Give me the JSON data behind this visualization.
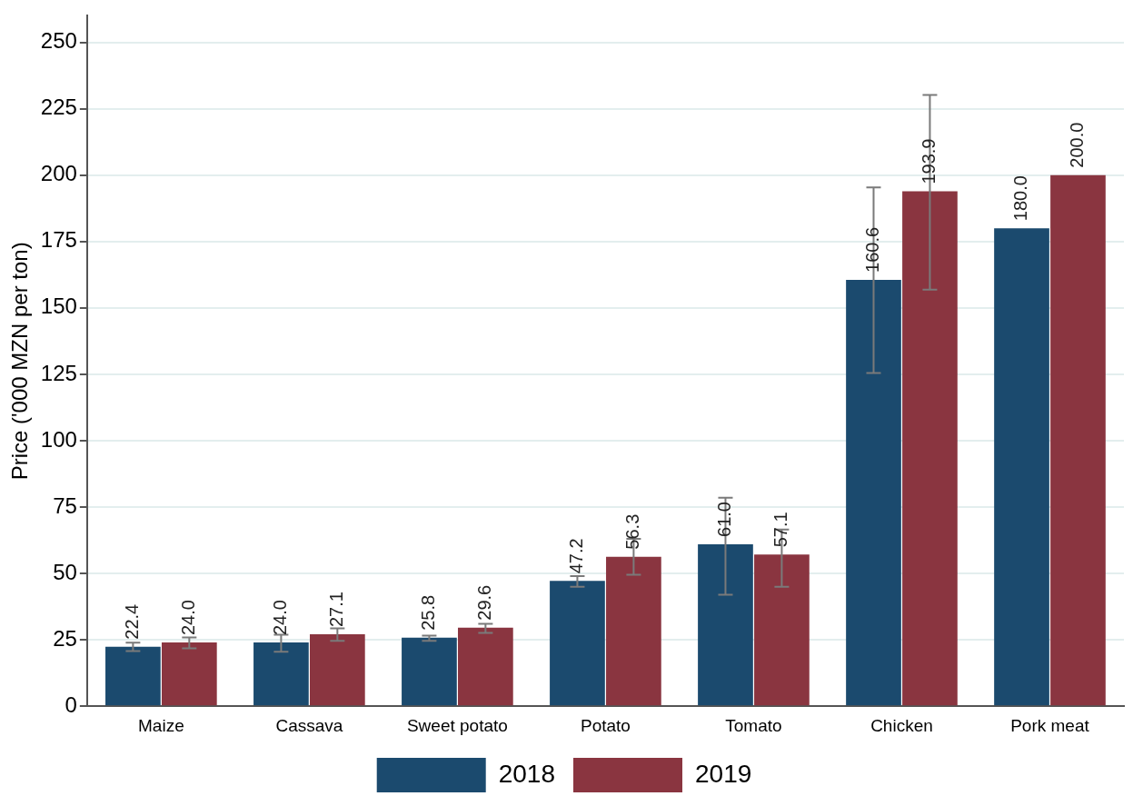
{
  "chart_data": {
    "type": "bar",
    "ylabel": "Price ('000 MZN per ton)",
    "categories": [
      "Maize",
      "Cassava",
      "Sweet potato",
      "Potato",
      "Tomato",
      "Chicken",
      "Pork meat"
    ],
    "series": [
      {
        "name": "2018",
        "color": "#1b4a6e",
        "values": [
          22.4,
          24.0,
          25.8,
          47.2,
          61.0,
          160.6,
          180.0
        ],
        "value_labels": [
          "22.4",
          "24.0",
          "25.8",
          "47.2",
          "61.0",
          "160.6",
          "180.0"
        ],
        "errors": [
          [
            20.8,
            23.9
          ],
          [
            20.5,
            26.9
          ],
          [
            24.6,
            26.6
          ],
          [
            45,
            49
          ],
          [
            42,
            78.5
          ],
          [
            125.5,
            195.4
          ],
          null
        ]
      },
      {
        "name": "2019",
        "color": "#8a3540",
        "values": [
          24.0,
          27.1,
          29.6,
          56.3,
          57.1,
          193.9,
          200.0
        ],
        "value_labels": [
          "24.0",
          "27.1",
          "29.6",
          "56.3",
          "57.1",
          "193.9",
          "200.0"
        ],
        "errors": [
          [
            21.8,
            25.9
          ],
          [
            24.6,
            29.3
          ],
          [
            27.6,
            31
          ],
          [
            49.5,
            63
          ],
          [
            45,
            66.5
          ],
          [
            156.9,
            230.2
          ],
          null
        ]
      }
    ],
    "ylim": [
      0,
      260
    ],
    "yticks": [
      0,
      25,
      50,
      75,
      100,
      125,
      150,
      175,
      200,
      225,
      250
    ],
    "grid": "y",
    "legend": "bottom"
  }
}
